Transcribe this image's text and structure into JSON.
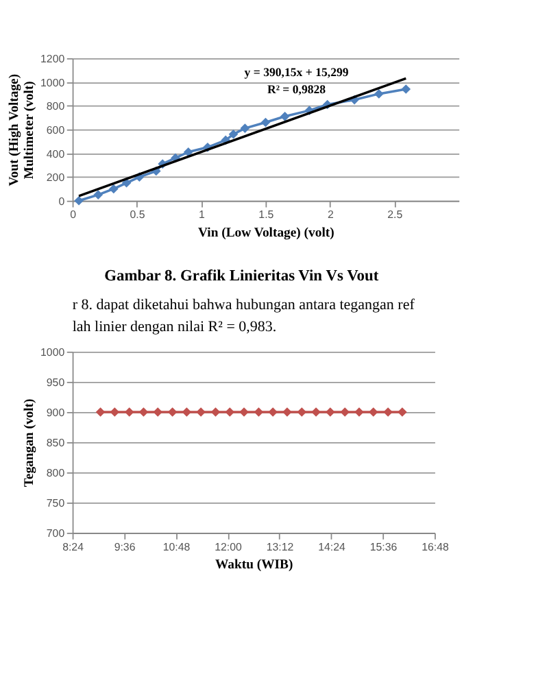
{
  "chart_data": [
    {
      "type": "line",
      "xlabel": "Vin (Low Voltage) (volt)",
      "ylabel": "Vout (High Voltage) Multimeter (volt)",
      "xlim": [
        0,
        3
      ],
      "xticks": [
        0,
        0.5,
        1,
        1.5,
        2,
        2.5
      ],
      "ylim": [
        0,
        1200
      ],
      "yticks": [
        0,
        200,
        400,
        600,
        800,
        1000,
        1200
      ],
      "grid": "y",
      "marker": "diamond",
      "series": [
        {
          "color": "#4f81bd",
          "x": [
            0.05,
            0.2,
            0.32,
            0.42,
            0.52,
            0.65,
            0.7,
            0.8,
            0.9,
            1.05,
            1.19,
            1.25,
            1.34,
            1.5,
            1.65,
            1.84,
            1.98,
            2.19,
            2.38,
            2.59
          ],
          "values": [
            0,
            50,
            100,
            150,
            200,
            250,
            310,
            360,
            410,
            450,
            510,
            560,
            610,
            660,
            710,
            760,
            810,
            850,
            900,
            940
          ]
        },
        {
          "type": "line",
          "marker": "none",
          "color": "#000000",
          "x": [
            0.05,
            2.59
          ],
          "values": [
            40,
            1030
          ]
        }
      ],
      "annotations": [
        "y = 390,15x + 15,299",
        "R² = 0,9828",
        "Gambar 8. Grafik Linieritas Vin Vs Vout"
      ]
    },
    {
      "type": "other",
      "annotations": [
        "r 8. dapat diketahui bahwa hubungan antara tegangan ref",
        "lah linier dengan nilai R² = 0,983."
      ]
    },
    {
      "type": "line",
      "xlabel": "Waktu (WIB)",
      "ylabel": "Tegangan (volt)",
      "xlim": [
        8.4,
        16.8
      ],
      "xticks": [
        {
          "value": 8.4,
          "label": "8:24"
        },
        {
          "value": 9.6,
          "label": "9:36"
        },
        {
          "value": 10.8,
          "label": "10:48"
        },
        {
          "value": 12,
          "label": "12:00"
        },
        {
          "value": 13.2,
          "label": "13:12"
        },
        {
          "value": 14.4,
          "label": "14:24"
        },
        {
          "value": 15.6,
          "label": "15:36"
        },
        {
          "value": 16.8,
          "label": "16:48"
        }
      ],
      "ylim": [
        700,
        1000
      ],
      "yticks": [
        700,
        750,
        800,
        850,
        900,
        950,
        1000
      ],
      "grid": "y",
      "marker": "diamond",
      "series": [
        {
          "color": "#c0504d",
          "x": [
            9.05,
            9.38,
            9.72,
            10.05,
            10.38,
            10.72,
            11.05,
            11.38,
            11.72,
            12.05,
            12.38,
            12.72,
            13.05,
            13.38,
            13.72,
            14.05,
            14.38,
            14.72,
            15.05,
            15.38,
            15.72,
            16.05
          ],
          "values": [
            900,
            900,
            900,
            900,
            900,
            900,
            900,
            900,
            900,
            900,
            900,
            900,
            900,
            900,
            900,
            900,
            900,
            900,
            900,
            900,
            900,
            900
          ]
        }
      ]
    }
  ]
}
